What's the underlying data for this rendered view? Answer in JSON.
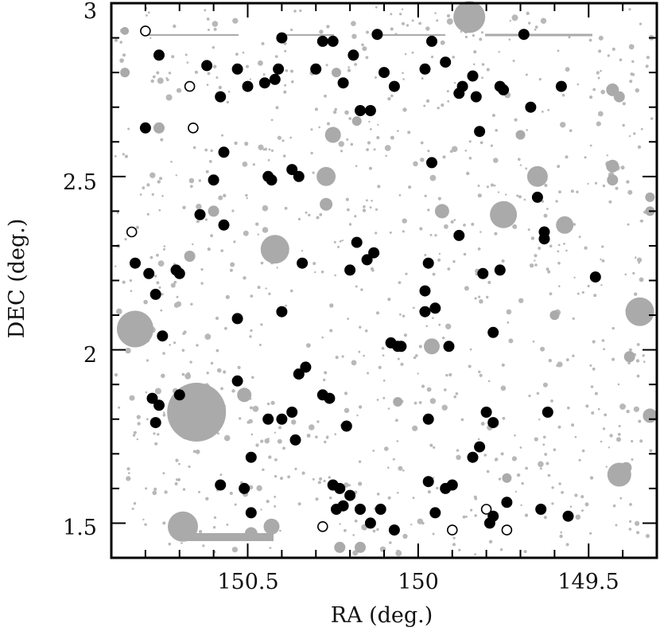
{
  "chart_data": {
    "type": "scatter",
    "title": "",
    "xlabel": "RA (deg.)",
    "ylabel": "DEC (deg.)",
    "xlim": [
      150.9,
      149.3
    ],
    "ylim": [
      1.4,
      3.0
    ],
    "x_reversed": true,
    "grid": false,
    "xticks": [
      {
        "value": 150.5,
        "label": "150.5"
      },
      {
        "value": 150.0,
        "label": "150"
      },
      {
        "value": 149.5,
        "label": "149.5"
      }
    ],
    "yticks": [
      {
        "value": 1.5,
        "label": "1.5"
      },
      {
        "value": 2.0,
        "label": "2"
      },
      {
        "value": 2.5,
        "label": "2.5"
      },
      {
        "value": 3.0,
        "label": "3"
      }
    ],
    "colors": {
      "filled": "#000000",
      "open": "#000000",
      "gray": "#aaaaaa",
      "background_dots": "#b8b8b8"
    },
    "series": [
      {
        "marker": "filled-circle",
        "color": "#000000",
        "points": [
          [
            150.76,
            2.85
          ],
          [
            150.62,
            2.82
          ],
          [
            150.58,
            2.73
          ],
          [
            150.53,
            2.81
          ],
          [
            150.5,
            2.76
          ],
          [
            150.45,
            2.77
          ],
          [
            150.42,
            2.78
          ],
          [
            150.41,
            2.81
          ],
          [
            150.4,
            2.9
          ],
          [
            150.3,
            2.81
          ],
          [
            150.28,
            2.89
          ],
          [
            150.25,
            2.89
          ],
          [
            150.22,
            2.77
          ],
          [
            150.19,
            2.85
          ],
          [
            150.17,
            2.69
          ],
          [
            150.14,
            2.69
          ],
          [
            150.12,
            2.91
          ],
          [
            150.1,
            2.8
          ],
          [
            150.07,
            2.76
          ],
          [
            149.98,
            2.81
          ],
          [
            149.96,
            2.89
          ],
          [
            149.92,
            2.83
          ],
          [
            149.88,
            2.74
          ],
          [
            149.87,
            2.76
          ],
          [
            149.84,
            2.79
          ],
          [
            149.83,
            2.73
          ],
          [
            149.76,
            2.76
          ],
          [
            149.75,
            2.75
          ],
          [
            149.69,
            2.91
          ],
          [
            149.67,
            2.7
          ],
          [
            149.58,
            2.76
          ],
          [
            149.82,
            2.63
          ],
          [
            149.96,
            2.54
          ],
          [
            150.8,
            2.64
          ],
          [
            150.57,
            2.57
          ],
          [
            150.6,
            2.49
          ],
          [
            150.43,
            2.49
          ],
          [
            150.44,
            2.5
          ],
          [
            150.37,
            2.52
          ],
          [
            150.35,
            2.5
          ],
          [
            150.64,
            2.39
          ],
          [
            150.57,
            2.36
          ],
          [
            150.18,
            2.31
          ],
          [
            150.15,
            2.26
          ],
          [
            150.13,
            2.28
          ],
          [
            150.34,
            2.25
          ],
          [
            150.2,
            2.23
          ],
          [
            149.97,
            2.25
          ],
          [
            149.88,
            2.33
          ],
          [
            149.65,
            2.44
          ],
          [
            149.63,
            2.34
          ],
          [
            149.63,
            2.32
          ],
          [
            149.76,
            2.23
          ],
          [
            149.81,
            2.22
          ],
          [
            149.48,
            2.21
          ],
          [
            150.83,
            2.25
          ],
          [
            150.79,
            2.22
          ],
          [
            150.77,
            2.16
          ],
          [
            150.71,
            2.23
          ],
          [
            150.7,
            2.22
          ],
          [
            150.75,
            2.04
          ],
          [
            150.53,
            2.09
          ],
          [
            150.4,
            2.11
          ],
          [
            149.98,
            2.17
          ],
          [
            149.98,
            2.11
          ],
          [
            149.95,
            2.12
          ],
          [
            150.08,
            2.02
          ],
          [
            150.06,
            2.01
          ],
          [
            150.05,
            2.01
          ],
          [
            149.91,
            2.01
          ],
          [
            149.78,
            2.05
          ],
          [
            150.53,
            1.91
          ],
          [
            150.35,
            1.93
          ],
          [
            150.33,
            1.95
          ],
          [
            150.28,
            1.87
          ],
          [
            150.26,
            1.86
          ],
          [
            150.78,
            1.86
          ],
          [
            150.76,
            1.84
          ],
          [
            150.77,
            1.79
          ],
          [
            150.7,
            1.87
          ],
          [
            150.44,
            1.8
          ],
          [
            150.4,
            1.8
          ],
          [
            150.37,
            1.82
          ],
          [
            150.36,
            1.74
          ],
          [
            150.21,
            1.78
          ],
          [
            149.97,
            1.8
          ],
          [
            149.8,
            1.82
          ],
          [
            149.78,
            1.79
          ],
          [
            149.82,
            1.72
          ],
          [
            149.84,
            1.69
          ],
          [
            149.62,
            1.82
          ],
          [
            150.49,
            1.69
          ],
          [
            150.58,
            1.61
          ],
          [
            150.51,
            1.6
          ],
          [
            150.25,
            1.61
          ],
          [
            150.23,
            1.6
          ],
          [
            150.22,
            1.55
          ],
          [
            150.24,
            1.54
          ],
          [
            150.2,
            1.58
          ],
          [
            150.17,
            1.54
          ],
          [
            150.11,
            1.54
          ],
          [
            150.14,
            1.5
          ],
          [
            150.07,
            1.48
          ],
          [
            149.97,
            1.62
          ],
          [
            149.92,
            1.6
          ],
          [
            149.9,
            1.61
          ],
          [
            149.95,
            1.53
          ],
          [
            149.78,
            1.52
          ],
          [
            149.79,
            1.5
          ],
          [
            149.74,
            1.56
          ],
          [
            149.64,
            1.54
          ],
          [
            149.56,
            1.52
          ],
          [
            150.49,
            1.53
          ]
        ]
      },
      {
        "marker": "open-circle",
        "color": "#000000",
        "points": [
          [
            150.8,
            2.92
          ],
          [
            150.67,
            2.76
          ],
          [
            150.66,
            2.64
          ],
          [
            150.84,
            2.34
          ],
          [
            150.28,
            1.49
          ],
          [
            149.9,
            1.48
          ],
          [
            149.8,
            1.54
          ],
          [
            149.74,
            1.48
          ]
        ]
      },
      {
        "marker": "gray-circle",
        "color": "#aaaaaa",
        "points": [
          [
            149.85,
            2.96,
            20
          ],
          [
            150.83,
            2.06,
            23
          ],
          [
            150.65,
            1.82,
            37
          ],
          [
            150.69,
            1.49,
            19
          ],
          [
            150.42,
            2.29,
            18
          ],
          [
            149.75,
            2.39,
            17
          ],
          [
            149.65,
            2.5,
            13
          ],
          [
            149.35,
            2.11,
            18
          ],
          [
            149.41,
            1.64,
            15
          ],
          [
            149.96,
            2.01,
            10
          ],
          [
            150.27,
            2.5,
            12
          ],
          [
            150.27,
            2.42,
            8
          ],
          [
            150.25,
            2.62,
            10
          ],
          [
            149.93,
            2.4,
            9
          ],
          [
            149.57,
            2.36,
            11
          ],
          [
            149.43,
            2.75,
            8
          ],
          [
            149.43,
            2.53,
            8
          ],
          [
            149.43,
            2.49,
            7
          ],
          [
            150.6,
            2.4,
            7
          ],
          [
            150.67,
            2.27,
            7
          ],
          [
            150.76,
            2.64,
            7
          ],
          [
            150.86,
            2.8,
            6
          ],
          [
            150.51,
            1.87,
            9
          ],
          [
            150.68,
            1.76,
            8
          ],
          [
            150.49,
            1.47,
            8
          ],
          [
            150.43,
            1.49,
            10
          ],
          [
            149.39,
            1.66,
            7
          ],
          [
            149.38,
            1.98,
            7
          ],
          [
            149.32,
            1.81,
            9
          ],
          [
            149.32,
            2.4,
            6
          ],
          [
            149.32,
            2.44,
            6
          ],
          [
            149.74,
            1.63,
            6
          ],
          [
            149.7,
            2.62,
            6
          ],
          [
            150.18,
            2.66,
            6
          ],
          [
            150.24,
            2.8,
            6
          ],
          [
            150.23,
            1.43,
            7
          ],
          [
            150.17,
            1.43,
            7
          ],
          [
            150.06,
            1.85,
            6
          ],
          [
            149.41,
            2.73,
            7
          ],
          [
            149.6,
            2.1,
            6
          ],
          [
            150.86,
            2.92,
            5
          ]
        ]
      }
    ],
    "annotations": [
      "line segments: gray horizontal bars near top edge and bottom-left"
    ]
  }
}
